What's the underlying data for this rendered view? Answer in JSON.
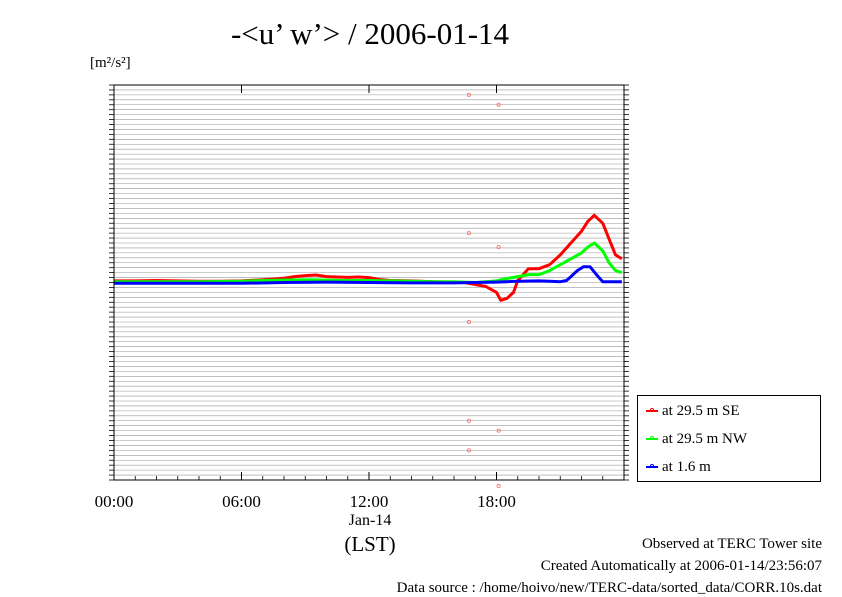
{
  "chart_data": {
    "type": "line",
    "title": "-<u’ w’> / 2006-01-14",
    "ylabel_unit": "[m²/s²]",
    "xlabel": "(LST)",
    "x_date_label": "Jan-14",
    "x_tick_labels": [
      "00:00",
      "06:00",
      "12:00",
      "18:00"
    ],
    "x_ticks_hours": [
      0,
      6,
      12,
      18
    ],
    "xlim_hours": [
      0,
      24
    ],
    "ylim": [
      -0.1,
      0.1
    ],
    "legend_position": "bottom-right",
    "grid": true,
    "series": [
      {
        "name": "at 29.5 m SE",
        "color": "#ff0000",
        "x": [
          0,
          1,
          2,
          3,
          4,
          5,
          6,
          7,
          8,
          8.5,
          9,
          9.5,
          10,
          10.5,
          11,
          11.5,
          12,
          12.5,
          13,
          14,
          15,
          16,
          16.5,
          17,
          17.5,
          18,
          18.2,
          18.5,
          18.8,
          19,
          19.5,
          20,
          20.5,
          21,
          21.5,
          22,
          22.3,
          22.6,
          23,
          23.3,
          23.6,
          23.9
        ],
        "y": [
          0.0008,
          0.0008,
          0.001,
          0.0008,
          0.0006,
          0.0006,
          0.0008,
          0.0014,
          0.0022,
          0.003,
          0.0035,
          0.0038,
          0.003,
          0.0028,
          0.0026,
          0.0028,
          0.0025,
          0.0015,
          0.001,
          0.0008,
          0.0004,
          0.0002,
          0.0,
          -0.001,
          -0.002,
          -0.005,
          -0.009,
          -0.008,
          -0.005,
          0.001,
          0.007,
          0.007,
          0.009,
          0.014,
          0.02,
          0.026,
          0.031,
          0.034,
          0.03,
          0.022,
          0.014,
          0.012
        ]
      },
      {
        "name": "at 29.5 m NW",
        "color": "#00ff00",
        "x": [
          0,
          2,
          4,
          6,
          7,
          8,
          9,
          10,
          11,
          12,
          13,
          14,
          15,
          16,
          16.5,
          17,
          17.5,
          18,
          18.5,
          19,
          19.5,
          20,
          20.5,
          21,
          21.5,
          22,
          22.3,
          22.6,
          23,
          23.3,
          23.6,
          23.9
        ],
        "y": [
          0.0004,
          0.0004,
          0.0004,
          0.0006,
          0.001,
          0.0012,
          0.0014,
          0.0012,
          0.001,
          0.001,
          0.0008,
          0.0006,
          0.0004,
          0.0004,
          0.0002,
          0.0,
          0.0004,
          0.0008,
          0.002,
          0.003,
          0.004,
          0.004,
          0.006,
          0.009,
          0.012,
          0.015,
          0.018,
          0.02,
          0.016,
          0.01,
          0.006,
          0.005
        ]
      },
      {
        "name": "at 1.6 m",
        "color": "#0000ff",
        "x": [
          0,
          2,
          4,
          6,
          8,
          10,
          12,
          14,
          16,
          17,
          18,
          19,
          20,
          20.5,
          21,
          21.3,
          21.5,
          21.8,
          22.1,
          22.4,
          22.7,
          23,
          23.5,
          23.9
        ],
        "y": [
          -0.0004,
          -0.0004,
          -0.0004,
          -0.0004,
          0.0,
          0.0002,
          0.0,
          -0.0002,
          -0.0002,
          0.0,
          0.0002,
          0.0006,
          0.0008,
          0.0006,
          0.0004,
          0.001,
          0.003,
          0.006,
          0.008,
          0.008,
          0.004,
          0.0004,
          0.0004,
          0.0004
        ]
      }
    ],
    "points": {
      "color": "#ff6666",
      "x": [
        16.7,
        16.7,
        16.7,
        16.7,
        16.7,
        18.1,
        18.1,
        18.1,
        18.1
      ],
      "y": [
        0.095,
        0.025,
        -0.02,
        -0.07,
        -0.085,
        0.09,
        0.018,
        -0.075,
        -0.103
      ]
    }
  },
  "legend": {
    "items": [
      {
        "label": "at 29.5 m SE",
        "color": "#ff0000"
      },
      {
        "label": "at 29.5 m NW",
        "color": "#00ff00"
      },
      {
        "label": "at 1.6 m",
        "color": "#0000ff"
      }
    ]
  },
  "footer": {
    "line1": "Observed at TERC Tower site",
    "line2": "Created Automatically at 2006-01-14/23:56:07",
    "line3": "Data source : /home/hoivo/new/TERC-data/sorted_data/CORR.10s.dat"
  }
}
